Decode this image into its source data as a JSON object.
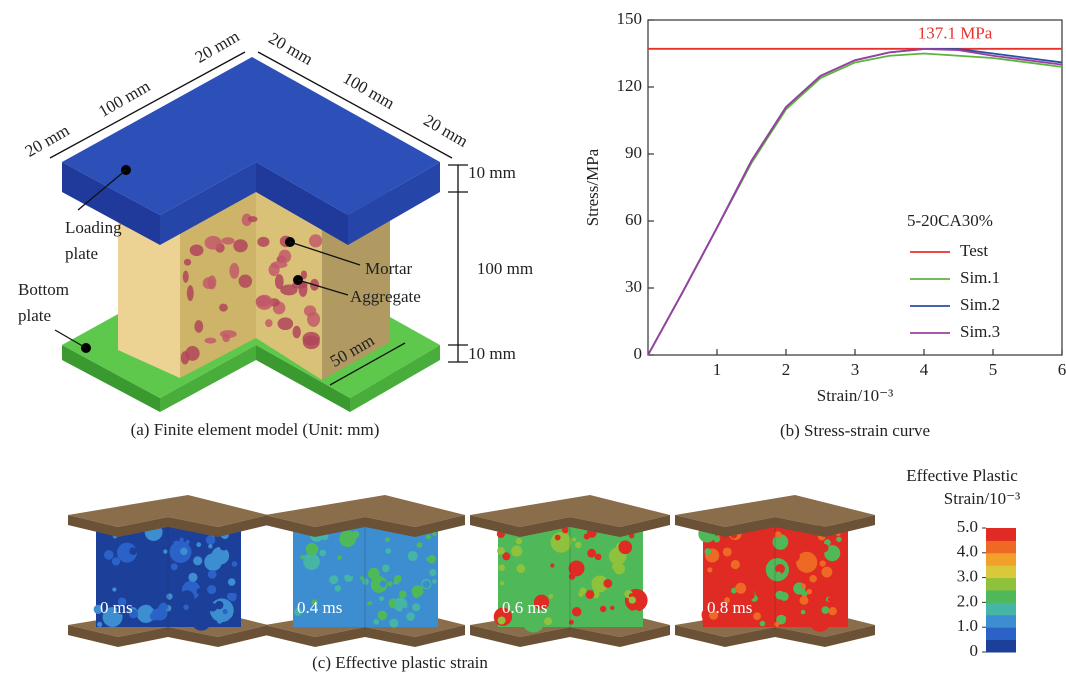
{
  "panel_a": {
    "caption": "(a) Finite element model (Unit: mm)",
    "dimensions": [
      "20 mm",
      "100 mm",
      "20 mm",
      "20 mm",
      "100 mm",
      "20 mm",
      "10 mm",
      "100 mm",
      "10 mm",
      "50 mm"
    ],
    "labels": [
      [
        "Loading",
        "plate"
      ],
      [
        "Bottom",
        "plate"
      ],
      [
        "Mortar"
      ],
      [
        "Aggregate"
      ]
    ]
  },
  "chart_data": {
    "type": "line",
    "xlabel": "Strain/10⁻³",
    "ylabel": "Stress/MPa",
    "caption": "(b) Stress-strain curve",
    "x": [
      0,
      0.5,
      1,
      1.5,
      2,
      2.5,
      3,
      3.5,
      4,
      4.5,
      5,
      5.5,
      6
    ],
    "xlim": [
      0,
      6
    ],
    "xticks": [
      1,
      2,
      3,
      4,
      5,
      6
    ],
    "ylim": [
      0,
      150
    ],
    "yticks": [
      0,
      30,
      60,
      90,
      120,
      150
    ],
    "annotation": {
      "value": 137.1,
      "label": "137.1 MPa"
    },
    "legend_title": "5-20CA30%",
    "legend": "lower right",
    "series": [
      {
        "name": "Test",
        "color": "#e8302a",
        "values": [
          137.1,
          137.1,
          137.1,
          137.1,
          137.1,
          137.1,
          137.1,
          137.1,
          137.1,
          137.1,
          137.1,
          137.1,
          137.1
        ]
      },
      {
        "name": "Sim.1",
        "color": "#5bb53b",
        "values": [
          0,
          28,
          57,
          86,
          110,
          124,
          131,
          134,
          135,
          134,
          133,
          131,
          129
        ]
      },
      {
        "name": "Sim.2",
        "color": "#2a4fa0",
        "values": [
          0,
          28,
          57,
          87,
          111,
          125,
          132,
          135.5,
          137,
          137,
          135,
          133,
          131
        ]
      },
      {
        "name": "Sim.3",
        "color": "#9b3fa3",
        "values": [
          0,
          28,
          57,
          87,
          111,
          125,
          132,
          135.5,
          137,
          136.5,
          134,
          132,
          130
        ]
      }
    ]
  },
  "panel_c": {
    "caption": "(c) Effective plastic strain",
    "times": [
      "0 ms",
      "0.4 ms",
      "0.6 ms",
      "0.8 ms"
    ],
    "colorbar_title": [
      "Effective Plastic",
      "Strain/10⁻³"
    ],
    "colorbar_lim": [
      0,
      5
    ],
    "colorbar_ticks": [
      {
        "value": 5,
        "label": "5.0"
      },
      {
        "value": 4,
        "label": "4.0"
      },
      {
        "value": 3,
        "label": "3.0"
      },
      {
        "value": 2,
        "label": "2.0"
      },
      {
        "value": 1,
        "label": "1.0"
      },
      0
    ],
    "colors": [
      "#1c3f9a",
      "#2b62c8",
      "#3c8ed0",
      "#45b5a5",
      "#4fb858",
      "#8fc23c",
      "#d8c83a",
      "#f2a02c",
      "#ee6a24",
      "#e02a24"
    ]
  }
}
